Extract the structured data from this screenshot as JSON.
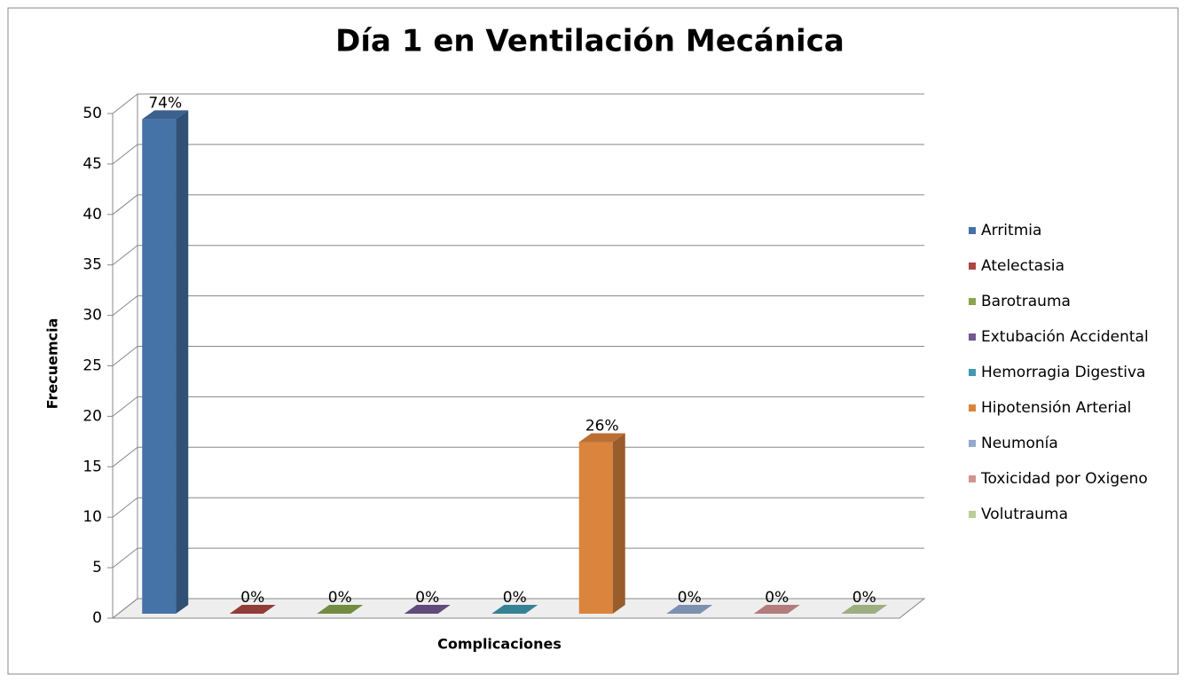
{
  "chart_data": {
    "type": "bar3d",
    "title": "Día 1 en Ventilación Mecánica",
    "x_label": "Complicaciones",
    "y_label": "Frecuemcia",
    "categories": [
      null
    ],
    "series": [
      {
        "name": "Arritmia",
        "color": "#4572a7",
        "values": [
          49
        ],
        "value_labels": [
          "74%"
        ]
      },
      {
        "name": "Atelectasia",
        "color": "#aa4643",
        "values": [
          0
        ],
        "value_labels": [
          "0%"
        ]
      },
      {
        "name": "Barotrauma",
        "color": "#89a54e",
        "values": [
          0
        ],
        "value_labels": [
          "0%"
        ]
      },
      {
        "name": "Extubación Accidental",
        "color": "#71588f",
        "values": [
          0
        ],
        "value_labels": [
          "0%"
        ]
      },
      {
        "name": "Hemorragia Digestiva",
        "color": "#4198af",
        "values": [
          0
        ],
        "value_labels": [
          "0%"
        ]
      },
      {
        "name": "Hipotensión Arterial",
        "color": "#db843d",
        "values": [
          17
        ],
        "value_labels": [
          "26%"
        ]
      },
      {
        "name": "Neumonía",
        "color": "#93a9cf",
        "values": [
          0
        ],
        "value_labels": [
          "0%"
        ]
      },
      {
        "name": "Toxicidad por Oxigeno",
        "color": "#d19392",
        "values": [
          0
        ],
        "value_labels": [
          "0%"
        ]
      },
      {
        "name": "Volutrauma",
        "color": "#b9cd96",
        "values": [
          0
        ],
        "value_labels": [
          "0%"
        ]
      }
    ],
    "ylim": [
      0,
      50
    ],
    "yticks": [
      0,
      5,
      10,
      15,
      20,
      25,
      30,
      35,
      40,
      45,
      50
    ],
    "grid": true,
    "legend": "right"
  }
}
